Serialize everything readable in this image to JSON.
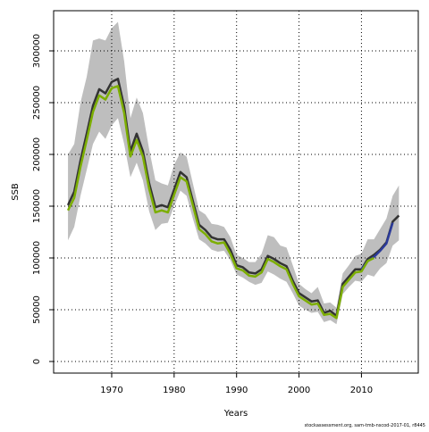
{
  "chart_data": {
    "type": "line",
    "xlabel": "Years",
    "ylabel": "SSB",
    "footer": "stockassessment.org, sam-tmb-nscod-2017-01, r8445",
    "x": [
      1963,
      1964,
      1965,
      1966,
      1967,
      1968,
      1969,
      1970,
      1971,
      1972,
      1973,
      1974,
      1975,
      1976,
      1977,
      1978,
      1979,
      1980,
      1981,
      1982,
      1983,
      1984,
      1985,
      1986,
      1987,
      1988,
      1989,
      1990,
      1991,
      1992,
      1993,
      1994,
      1995,
      1996,
      1997,
      1998,
      1999,
      2000,
      2001,
      2002,
      2003,
      2004,
      2005,
      2006,
      2007,
      2008,
      2009,
      2010,
      2011,
      2012,
      2013,
      2014,
      2015,
      2016
    ],
    "band": {
      "color": "#bebebe",
      "upper": [
        200000,
        210000,
        250000,
        275000,
        310000,
        312000,
        310000,
        322000,
        328000,
        290000,
        235000,
        255000,
        240000,
        205000,
        175000,
        172000,
        170000,
        190000,
        202000,
        198000,
        172000,
        146000,
        142000,
        133000,
        132000,
        130000,
        120000,
        103000,
        100000,
        96000,
        96000,
        104000,
        122000,
        120000,
        112000,
        110000,
        93000,
        75000,
        70000,
        66000,
        72000,
        56000,
        57000,
        52000,
        85000,
        93000,
        102000,
        104000,
        118000,
        118000,
        128000,
        138000,
        160000,
        170000
      ],
      "lower": [
        117000,
        130000,
        160000,
        185000,
        210000,
        222000,
        215000,
        228000,
        235000,
        210000,
        178000,
        192000,
        175000,
        145000,
        127000,
        133000,
        134000,
        150000,
        165000,
        160000,
        138000,
        118000,
        114000,
        108000,
        106000,
        107000,
        98000,
        84000,
        81000,
        77000,
        74000,
        76000,
        87000,
        84000,
        80000,
        77000,
        66000,
        54000,
        50000,
        47000,
        48000,
        38000,
        40000,
        36000,
        65000,
        72000,
        78000,
        77000,
        84000,
        82000,
        90000,
        95000,
        112000,
        117000
      ]
    },
    "series": [
      {
        "color": "#333333",
        "values": [
          151000,
          164000,
          194000,
          220000,
          247000,
          263000,
          259000,
          270000,
          273000,
          246000,
          203000,
          220000,
          203000,
          172000,
          149000,
          151000,
          149000,
          166000,
          183000,
          178000,
          155000,
          132000,
          127000,
          120000,
          118000,
          118000,
          108000,
          93000,
          91000,
          86000,
          85000,
          89000,
          102000,
          99000,
          95000,
          92000,
          78000,
          66000,
          62000,
          58000,
          59000,
          47000,
          49000,
          44000,
          75000,
          82000,
          89000,
          89000,
          99000,
          103000,
          108000,
          115000,
          135000,
          141000
        ]
      },
      {
        "color": "#2b3a9a",
        "values": [
          null,
          null,
          null,
          null,
          null,
          null,
          null,
          null,
          null,
          null,
          null,
          null,
          null,
          null,
          null,
          null,
          null,
          null,
          null,
          null,
          null,
          null,
          null,
          null,
          null,
          null,
          null,
          null,
          null,
          null,
          null,
          null,
          null,
          null,
          null,
          null,
          null,
          null,
          null,
          null,
          null,
          null,
          null,
          null,
          null,
          null,
          null,
          89000,
          97000,
          101000,
          107000,
          114000,
          134000,
          null
        ]
      },
      {
        "color": "#7cae00",
        "values": [
          146000,
          158000,
          188000,
          214000,
          241000,
          257000,
          253000,
          264000,
          266000,
          240000,
          198000,
          214000,
          198000,
          167000,
          144000,
          146000,
          144000,
          161000,
          178000,
          174000,
          151000,
          128000,
          123000,
          116000,
          114000,
          115000,
          104000,
          90000,
          88000,
          83000,
          82000,
          86000,
          99000,
          96000,
          92000,
          89000,
          75000,
          63000,
          59000,
          55000,
          56000,
          45000,
          46000,
          42000,
          72000,
          79000,
          86000,
          87000,
          97000,
          100000,
          null,
          null,
          null,
          null
        ]
      }
    ],
    "xlim": [
      1960.7,
      2019.1
    ],
    "ylim": [
      -11200,
      338800
    ],
    "xticks": [
      1970,
      1980,
      1990,
      2000,
      2010
    ],
    "yticks": [
      0,
      50000,
      100000,
      150000,
      200000,
      250000,
      300000
    ],
    "grid": true
  }
}
